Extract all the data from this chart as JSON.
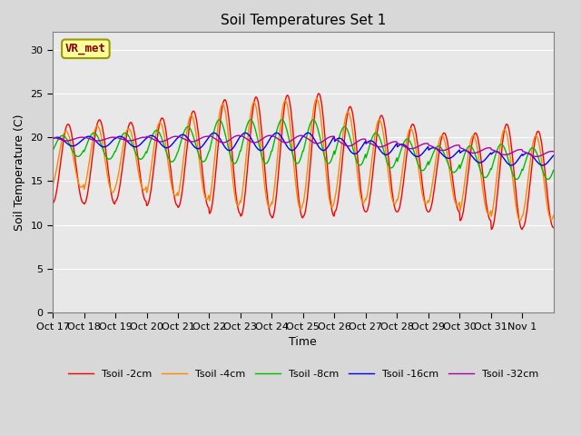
{
  "title": "Soil Temperatures Set 1",
  "xlabel": "Time",
  "ylabel": "Soil Temperature (C)",
  "ylim": [
    0,
    32
  ],
  "yticks": [
    0,
    5,
    10,
    15,
    20,
    25,
    30
  ],
  "num_days": 16,
  "points_per_day": 48,
  "annotation_text": "VR_met",
  "colors": {
    "Tsoil -2cm": "#ff0000",
    "Tsoil -4cm": "#ff8800",
    "Tsoil -8cm": "#00bb00",
    "Tsoil -16cm": "#0000ff",
    "Tsoil -32cm": "#aa00aa"
  },
  "bg_color": "#d8d8d8",
  "plot_bg_color": "#e8e8e8",
  "base_2cm": [
    17.0,
    17.2,
    17.2,
    17.2,
    17.5,
    17.8,
    17.8,
    17.8,
    18.0,
    17.5,
    17.0,
    16.5,
    16.0,
    15.5,
    15.5,
    15.2
  ],
  "base_4cm": [
    17.5,
    17.5,
    17.5,
    17.5,
    17.7,
    18.0,
    18.0,
    18.0,
    18.2,
    17.7,
    17.2,
    16.7,
    16.2,
    15.7,
    15.7,
    15.4
  ],
  "base_8cm": [
    19.0,
    19.0,
    19.0,
    19.0,
    19.2,
    19.5,
    19.5,
    19.5,
    19.5,
    19.0,
    18.5,
    18.0,
    17.5,
    17.2,
    17.2,
    17.0
  ],
  "base_16cm": [
    19.5,
    19.5,
    19.5,
    19.5,
    19.5,
    19.5,
    19.5,
    19.5,
    19.5,
    19.0,
    18.8,
    18.5,
    18.2,
    17.8,
    17.6,
    17.5
  ],
  "base_32cm": [
    19.8,
    19.8,
    19.8,
    19.8,
    19.8,
    19.8,
    19.8,
    19.8,
    19.7,
    19.4,
    19.2,
    19.0,
    18.8,
    18.5,
    18.3,
    18.1
  ],
  "amp_2cm": [
    4.5,
    4.8,
    4.5,
    5.0,
    5.5,
    6.5,
    6.8,
    7.0,
    7.0,
    6.0,
    5.5,
    5.0,
    4.5,
    5.0,
    6.0,
    5.5
  ],
  "amp_4cm": [
    3.2,
    3.8,
    3.5,
    4.2,
    4.8,
    5.8,
    6.0,
    6.2,
    6.2,
    5.2,
    4.8,
    4.3,
    4.0,
    4.5,
    5.2,
    4.8
  ],
  "amp_8cm": [
    1.2,
    1.5,
    1.5,
    1.8,
    2.0,
    2.5,
    2.5,
    2.5,
    2.5,
    2.2,
    2.0,
    1.8,
    1.5,
    1.8,
    2.0,
    1.8
  ],
  "amp_16cm": [
    0.5,
    0.6,
    0.6,
    0.7,
    0.8,
    1.0,
    1.0,
    1.0,
    1.0,
    0.9,
    0.8,
    0.7,
    0.6,
    0.7,
    0.8,
    0.7
  ],
  "amp_32cm": [
    0.2,
    0.2,
    0.2,
    0.3,
    0.3,
    0.4,
    0.4,
    0.4,
    0.4,
    0.4,
    0.3,
    0.3,
    0.3,
    0.3,
    0.3,
    0.3
  ],
  "phase_shift_2cm": 0.0,
  "phase_shift_4cm": 0.07,
  "phase_shift_8cm": 0.18,
  "phase_shift_16cm": 0.35,
  "phase_shift_32cm": 0.55,
  "xtick_labels": [
    "Oct 17",
    "Oct 18",
    "Oct 19",
    "Oct 20",
    "Oct 21",
    "Oct 22",
    "Oct 23",
    "Oct 24",
    "Oct 25",
    "Oct 26",
    "Oct 27",
    "Oct 28",
    "Oct 29",
    "Oct 30",
    "Oct 31",
    "Nov 1"
  ],
  "linewidth": 1.0
}
